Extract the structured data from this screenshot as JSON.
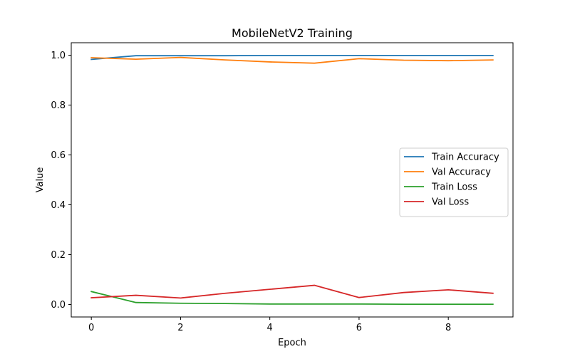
{
  "chart_data": {
    "type": "line",
    "title": "MobileNetV2 Training",
    "xlabel": "Epoch",
    "ylabel": "Value",
    "x": [
      0,
      1,
      2,
      3,
      4,
      5,
      6,
      7,
      8,
      9
    ],
    "xlim": [
      -0.45,
      9.45
    ],
    "ylim": [
      -0.05,
      1.05
    ],
    "xticks": [
      0,
      2,
      4,
      6,
      8
    ],
    "yticks": [
      0.0,
      0.2,
      0.4,
      0.6,
      0.8,
      1.0
    ],
    "xtick_labels": [
      "0",
      "2",
      "4",
      "6",
      "8"
    ],
    "ytick_labels": [
      "0.0",
      "0.2",
      "0.4",
      "0.6",
      "0.8",
      "1.0"
    ],
    "grid": false,
    "legend_position": "center-right",
    "series": [
      {
        "name": "Train Accuracy",
        "color": "#1f77b4",
        "values": [
          0.983,
          0.998,
          0.998,
          0.998,
          0.999,
          0.999,
          0.999,
          0.999,
          0.999,
          0.999
        ]
      },
      {
        "name": "Val Accuracy",
        "color": "#ff7f0e",
        "values": [
          0.99,
          0.984,
          0.991,
          0.981,
          0.973,
          0.968,
          0.986,
          0.98,
          0.978,
          0.981
        ]
      },
      {
        "name": "Train Loss",
        "color": "#2ca02c",
        "values": [
          0.052,
          0.008,
          0.005,
          0.004,
          0.002,
          0.002,
          0.002,
          0.001,
          0.001,
          0.001
        ]
      },
      {
        "name": "Val Loss",
        "color": "#d62728",
        "values": [
          0.027,
          0.037,
          0.026,
          0.045,
          0.061,
          0.077,
          0.028,
          0.048,
          0.059,
          0.045
        ]
      }
    ]
  }
}
